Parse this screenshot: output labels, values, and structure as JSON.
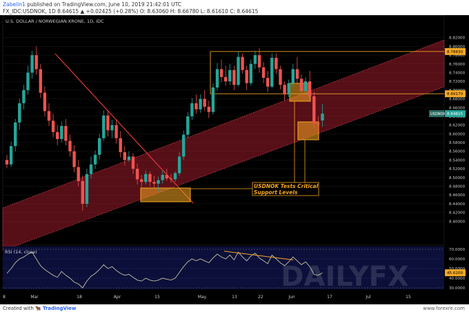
{
  "header": {
    "line1_author": "Zabelin1",
    "line1_rest": " published on TradingView.com, June 10, 2019 21:42:01 UTC",
    "line2": "FX_IDC:USDNOK, 1D  8.64615 ▲ +0.02425 (+0.28%)  O: 8.63060  H: 8.66780  L: 8.61610  C: 8.64615"
  },
  "footer": {
    "created_with": "Created with",
    "brand": "TradingView",
    "site": "www.forexre.com"
  },
  "chart_data": {
    "type": "candlestick",
    "title": "U.S. DOLLAR / NORWEGIAN KRONE, 1D, IDC",
    "watermark": "DAILYFX",
    "ylim": [
      8.38,
      8.84
    ],
    "y_ticks": [
      "8.82000",
      "8.80000",
      "8.78000",
      "8.76000",
      "8.74000",
      "8.72000",
      "8.70000",
      "8.68000",
      "8.66000",
      "8.64000",
      "8.62000",
      "8.60000",
      "8.58000",
      "8.56000",
      "8.54000",
      "8.52000",
      "8.50000",
      "8.48000",
      "8.46000",
      "8.44000",
      "8.42000",
      "8.40000"
    ],
    "x_ticks": [
      "8",
      "Mar",
      "18",
      "Apr",
      "15",
      "May",
      "13",
      "22",
      "Jun",
      "17",
      "Jul",
      "15"
    ],
    "levels": [
      {
        "label": "8.78830",
        "value": 8.7883
      },
      {
        "label": "8.69170",
        "value": 8.6917
      }
    ],
    "last_price": {
      "label": "USDNOK",
      "value": "8.64615"
    },
    "annotation": [
      "USDNOK Tests Critical",
      "Support Levels"
    ],
    "colors": {
      "up": "#26a69a",
      "down": "#ef5350",
      "bg": "#000000",
      "channel": "#9c1c2a",
      "level": "#f7a823",
      "trend": "#e53935"
    },
    "candles": [
      {
        "date": "Feb 25",
        "o": 8.54,
        "h": 8.552,
        "l": 8.522,
        "c": 8.53
      },
      {
        "date": "Feb 26",
        "o": 8.53,
        "h": 8.582,
        "l": 8.524,
        "c": 8.572
      },
      {
        "date": "Feb 27",
        "o": 8.572,
        "h": 8.634,
        "l": 8.56,
        "c": 8.626
      },
      {
        "date": "Feb 28",
        "o": 8.626,
        "h": 8.68,
        "l": 8.61,
        "c": 8.67
      },
      {
        "date": "Mar 1",
        "o": 8.67,
        "h": 8.712,
        "l": 8.656,
        "c": 8.7
      },
      {
        "date": "Mar 4",
        "o": 8.7,
        "h": 8.756,
        "l": 8.69,
        "c": 8.74
      },
      {
        "date": "Mar 5",
        "o": 8.74,
        "h": 8.79,
        "l": 8.726,
        "c": 8.78
      },
      {
        "date": "Mar 6",
        "o": 8.78,
        "h": 8.8,
        "l": 8.735,
        "c": 8.748
      },
      {
        "date": "Mar 7",
        "o": 8.748,
        "h": 8.76,
        "l": 8.682,
        "c": 8.694
      },
      {
        "date": "Mar 8",
        "o": 8.694,
        "h": 8.708,
        "l": 8.64,
        "c": 8.652
      },
      {
        "date": "Mar 11",
        "o": 8.652,
        "h": 8.67,
        "l": 8.618,
        "c": 8.63
      },
      {
        "date": "Mar 12",
        "o": 8.63,
        "h": 8.646,
        "l": 8.592,
        "c": 8.604
      },
      {
        "date": "Mar 13",
        "o": 8.604,
        "h": 8.62,
        "l": 8.574,
        "c": 8.588
      },
      {
        "date": "Mar 14",
        "o": 8.588,
        "h": 8.628,
        "l": 8.58,
        "c": 8.618
      },
      {
        "date": "Mar 15",
        "o": 8.618,
        "h": 8.634,
        "l": 8.574,
        "c": 8.584
      },
      {
        "date": "Mar 18",
        "o": 8.584,
        "h": 8.598,
        "l": 8.548,
        "c": 8.56
      },
      {
        "date": "Mar 19",
        "o": 8.56,
        "h": 8.574,
        "l": 8.512,
        "c": 8.524
      },
      {
        "date": "Mar 20",
        "o": 8.524,
        "h": 8.54,
        "l": 8.48,
        "c": 8.492
      },
      {
        "date": "Mar 21",
        "o": 8.492,
        "h": 8.504,
        "l": 8.424,
        "c": 8.44
      },
      {
        "date": "Mar 22",
        "o": 8.44,
        "h": 8.52,
        "l": 8.432,
        "c": 8.508
      },
      {
        "date": "Mar 25",
        "o": 8.508,
        "h": 8.548,
        "l": 8.498,
        "c": 8.53
      },
      {
        "date": "Mar 26",
        "o": 8.53,
        "h": 8.562,
        "l": 8.52,
        "c": 8.552
      },
      {
        "date": "Mar 27",
        "o": 8.552,
        "h": 8.6,
        "l": 8.542,
        "c": 8.59
      },
      {
        "date": "Mar 28",
        "o": 8.59,
        "h": 8.654,
        "l": 8.584,
        "c": 8.642
      },
      {
        "date": "Mar 29",
        "o": 8.642,
        "h": 8.654,
        "l": 8.594,
        "c": 8.608
      },
      {
        "date": "Apr 1",
        "o": 8.608,
        "h": 8.632,
        "l": 8.59,
        "c": 8.62
      },
      {
        "date": "Apr 2",
        "o": 8.62,
        "h": 8.632,
        "l": 8.578,
        "c": 8.59
      },
      {
        "date": "Apr 3",
        "o": 8.59,
        "h": 8.606,
        "l": 8.546,
        "c": 8.558
      },
      {
        "date": "Apr 4",
        "o": 8.558,
        "h": 8.572,
        "l": 8.528,
        "c": 8.54
      },
      {
        "date": "Apr 5",
        "o": 8.54,
        "h": 8.56,
        "l": 8.536,
        "c": 8.548
      },
      {
        "date": "Apr 8",
        "o": 8.548,
        "h": 8.556,
        "l": 8.508,
        "c": 8.52
      },
      {
        "date": "Apr 9",
        "o": 8.52,
        "h": 8.532,
        "l": 8.484,
        "c": 8.496
      },
      {
        "date": "Apr 10",
        "o": 8.496,
        "h": 8.506,
        "l": 8.478,
        "c": 8.49
      },
      {
        "date": "Apr 11",
        "o": 8.49,
        "h": 8.516,
        "l": 8.484,
        "c": 8.508
      },
      {
        "date": "Apr 12",
        "o": 8.508,
        "h": 8.514,
        "l": 8.48,
        "c": 8.49
      },
      {
        "date": "Apr 15",
        "o": 8.49,
        "h": 8.504,
        "l": 8.476,
        "c": 8.486
      },
      {
        "date": "Apr 16",
        "o": 8.486,
        "h": 8.502,
        "l": 8.468,
        "c": 8.494
      },
      {
        "date": "Apr 17",
        "o": 8.494,
        "h": 8.516,
        "l": 8.486,
        "c": 8.506
      },
      {
        "date": "Apr 18",
        "o": 8.506,
        "h": 8.52,
        "l": 8.492,
        "c": 8.498
      },
      {
        "date": "Apr 19",
        "o": 8.498,
        "h": 8.508,
        "l": 8.488,
        "c": 8.496
      },
      {
        "date": "Apr 22",
        "o": 8.496,
        "h": 8.514,
        "l": 8.49,
        "c": 8.51
      },
      {
        "date": "Apr 23",
        "o": 8.51,
        "h": 8.558,
        "l": 8.504,
        "c": 8.548
      },
      {
        "date": "Apr 24",
        "o": 8.548,
        "h": 8.608,
        "l": 8.54,
        "c": 8.598
      },
      {
        "date": "Apr 25",
        "o": 8.598,
        "h": 8.65,
        "l": 8.59,
        "c": 8.64
      },
      {
        "date": "Apr 26",
        "o": 8.64,
        "h": 8.682,
        "l": 8.632,
        "c": 8.67
      },
      {
        "date": "Apr 29",
        "o": 8.67,
        "h": 8.69,
        "l": 8.646,
        "c": 8.656
      },
      {
        "date": "Apr 30",
        "o": 8.656,
        "h": 8.69,
        "l": 8.648,
        "c": 8.68
      },
      {
        "date": "May 1",
        "o": 8.68,
        "h": 8.7,
        "l": 8.652,
        "c": 8.662
      },
      {
        "date": "May 2",
        "o": 8.662,
        "h": 8.676,
        "l": 8.636,
        "c": 8.65
      },
      {
        "date": "May 3",
        "o": 8.65,
        "h": 8.716,
        "l": 8.644,
        "c": 8.706
      },
      {
        "date": "May 6",
        "o": 8.706,
        "h": 8.762,
        "l": 8.7,
        "c": 8.748
      },
      {
        "date": "May 7",
        "o": 8.748,
        "h": 8.77,
        "l": 8.718,
        "c": 8.73
      },
      {
        "date": "May 8",
        "o": 8.73,
        "h": 8.756,
        "l": 8.71,
        "c": 8.72
      },
      {
        "date": "May 9",
        "o": 8.72,
        "h": 8.76,
        "l": 8.712,
        "c": 8.746
      },
      {
        "date": "May 10",
        "o": 8.746,
        "h": 8.756,
        "l": 8.7,
        "c": 8.712
      },
      {
        "date": "May 13",
        "o": 8.712,
        "h": 8.788,
        "l": 8.708,
        "c": 8.776
      },
      {
        "date": "May 14",
        "o": 8.776,
        "h": 8.784,
        "l": 8.738,
        "c": 8.746
      },
      {
        "date": "May 15",
        "o": 8.746,
        "h": 8.756,
        "l": 8.7,
        "c": 8.716
      },
      {
        "date": "May 16",
        "o": 8.716,
        "h": 8.77,
        "l": 8.71,
        "c": 8.76
      },
      {
        "date": "May 17",
        "o": 8.76,
        "h": 8.79,
        "l": 8.748,
        "c": 8.78
      },
      {
        "date": "May 20",
        "o": 8.78,
        "h": 8.796,
        "l": 8.74,
        "c": 8.752
      },
      {
        "date": "May 21",
        "o": 8.752,
        "h": 8.764,
        "l": 8.716,
        "c": 8.728
      },
      {
        "date": "May 22",
        "o": 8.728,
        "h": 8.744,
        "l": 8.696,
        "c": 8.708
      },
      {
        "date": "May 23",
        "o": 8.708,
        "h": 8.784,
        "l": 8.704,
        "c": 8.774
      },
      {
        "date": "May 24",
        "o": 8.774,
        "h": 8.784,
        "l": 8.738,
        "c": 8.748
      },
      {
        "date": "May 27",
        "o": 8.748,
        "h": 8.756,
        "l": 8.702,
        "c": 8.712
      },
      {
        "date": "May 28",
        "o": 8.712,
        "h": 8.72,
        "l": 8.676,
        "c": 8.69
      },
      {
        "date": "May 29",
        "o": 8.69,
        "h": 8.724,
        "l": 8.684,
        "c": 8.716
      },
      {
        "date": "May 30",
        "o": 8.716,
        "h": 8.76,
        "l": 8.708,
        "c": 8.748
      },
      {
        "date": "May 31",
        "o": 8.748,
        "h": 8.776,
        "l": 8.716,
        "c": 8.726
      },
      {
        "date": "Jun 3",
        "o": 8.726,
        "h": 8.736,
        "l": 8.69,
        "c": 8.698
      },
      {
        "date": "Jun 4",
        "o": 8.698,
        "h": 8.73,
        "l": 8.69,
        "c": 8.72
      },
      {
        "date": "Jun 5",
        "o": 8.72,
        "h": 8.744,
        "l": 8.676,
        "c": 8.686
      },
      {
        "date": "Jun 6",
        "o": 8.686,
        "h": 8.696,
        "l": 8.612,
        "c": 8.624
      },
      {
        "date": "Jun 7",
        "o": 8.624,
        "h": 8.64,
        "l": 8.6,
        "c": 8.622
      },
      {
        "date": "Jun 10",
        "o": 8.6306,
        "h": 8.6678,
        "l": 8.6161,
        "c": 8.64615
      }
    ]
  },
  "rsi": {
    "label": "RSI (14, close)",
    "ylim": [
      30,
      70
    ],
    "ticks": [
      "70.0000",
      "60.0000",
      "50.0000",
      "40.0000",
      "30.0000"
    ],
    "current": "45.6200",
    "values": [
      45,
      50,
      56,
      60,
      62,
      65,
      67,
      60,
      53,
      49,
      46,
      43,
      41,
      47,
      43,
      40,
      36,
      34,
      30,
      37,
      42,
      45,
      49,
      54,
      50,
      52,
      48,
      45,
      43,
      44,
      41,
      38,
      37,
      40,
      38,
      37,
      38,
      40,
      39,
      38,
      40,
      46,
      52,
      57,
      60,
      58,
      60,
      58,
      56,
      61,
      65,
      62,
      60,
      64,
      59,
      67,
      62,
      58,
      63,
      66,
      61,
      58,
      55,
      64,
      60,
      56,
      53,
      57,
      62,
      58,
      54,
      57,
      52,
      44,
      43,
      45.62
    ]
  }
}
